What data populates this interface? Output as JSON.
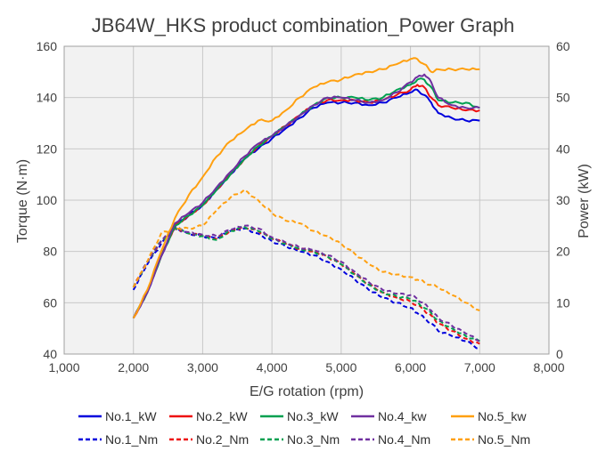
{
  "chart_data": {
    "type": "line",
    "title": "JB64W_HKS product combination_Power Graph",
    "xlabel": "E/G rotation (rpm)",
    "ylabel": "Torque (N·m)",
    "y2label": "Power (kW)",
    "xlim": [
      1000,
      8000
    ],
    "ylim": [
      40,
      160
    ],
    "y2lim": [
      0,
      60
    ],
    "xticks": [
      1000,
      2000,
      3000,
      4000,
      5000,
      6000,
      7000,
      8000
    ],
    "xtick_labels": [
      "1,000",
      "2,000",
      "3,000",
      "4,000",
      "5,000",
      "6,000",
      "7,000",
      "8,000"
    ],
    "yticks": [
      40,
      60,
      80,
      100,
      120,
      140,
      160
    ],
    "ytick_labels": [
      "40",
      "60",
      "80",
      "100",
      "120",
      "140",
      "160"
    ],
    "y2ticks": [
      0,
      10,
      20,
      30,
      40,
      50,
      60
    ],
    "y2tick_labels": [
      "0",
      "10",
      "20",
      "30",
      "40",
      "50",
      "60"
    ],
    "grid": true,
    "legend": "bottom",
    "colors": {
      "No.1": "#0000dd",
      "No.2": "#ee1111",
      "No.3": "#00a050",
      "No.4": "#7030a0",
      "No.5": "#ffa010",
      "plot_background": "#f2f2f2",
      "grid": "#c8c8c8"
    },
    "x": [
      2000,
      2200,
      2400,
      2600,
      2800,
      3000,
      3200,
      3400,
      3600,
      3800,
      4000,
      4200,
      4400,
      4600,
      4800,
      5000,
      5200,
      5400,
      5600,
      5800,
      6000,
      6100,
      6200,
      6300,
      6400,
      6600,
      6800,
      7000
    ],
    "series": [
      {
        "name": "No.1_kW",
        "axis": "right",
        "style": "solid",
        "color": "#0000dd",
        "values": [
          7,
          12,
          19,
          25,
          27,
          29,
          32,
          35,
          38,
          40,
          42,
          44,
          46,
          48,
          49,
          49,
          49,
          48.5,
          49,
          50,
          51,
          51.5,
          50.5,
          49,
          47,
          46,
          45.5,
          45.5
        ]
      },
      {
        "name": "No.2_kW",
        "axis": "right",
        "style": "solid",
        "color": "#ee1111",
        "values": [
          7,
          12,
          19,
          25,
          27,
          29,
          32,
          35,
          38,
          40.5,
          42.5,
          44.5,
          46.5,
          48.5,
          49.5,
          49.5,
          49.5,
          49,
          49.5,
          50.5,
          51.5,
          52.5,
          52,
          50,
          48.5,
          48,
          47.5,
          47.5
        ]
      },
      {
        "name": "No.3_kW",
        "axis": "right",
        "style": "solid",
        "color": "#00a050",
        "values": [
          7,
          12,
          19,
          25,
          27,
          29,
          32,
          35,
          38,
          40.5,
          42.5,
          44.5,
          46.5,
          48.5,
          50,
          50,
          50,
          49.5,
          50,
          51.5,
          52.5,
          53.5,
          53.5,
          52,
          49.5,
          49,
          49,
          48
        ]
      },
      {
        "name": "No.4_kw",
        "axis": "right",
        "style": "solid",
        "color": "#7030a0",
        "values": [
          7,
          12,
          19,
          25.5,
          27.5,
          29.5,
          32.5,
          35.5,
          38.5,
          41,
          42.5,
          44.5,
          46.5,
          48.5,
          50,
          50,
          49.5,
          49,
          49.5,
          51,
          53,
          54,
          54.5,
          53,
          50,
          48.5,
          48,
          48
        ]
      },
      {
        "name": "No.5_kw",
        "axis": "right",
        "style": "solid",
        "color": "#ffa010",
        "values": [
          7,
          12.5,
          20,
          26.5,
          31,
          34.5,
          38.5,
          41.5,
          43.5,
          45.5,
          45.5,
          47.5,
          50,
          52,
          53,
          53.5,
          54.5,
          55,
          55.5,
          56.5,
          57.5,
          57.5,
          56.5,
          55,
          55.5,
          55.5,
          55.5,
          55.5
        ]
      },
      {
        "name": "No.1_Nm",
        "axis": "left",
        "style": "dashed",
        "color": "#0000dd",
        "values": [
          65,
          75,
          83,
          89,
          87,
          86,
          85,
          88,
          89,
          87,
          84,
          82,
          80,
          78.5,
          76,
          73,
          69,
          65,
          62,
          60,
          58,
          56,
          54,
          52,
          49,
          47,
          45,
          42
        ]
      },
      {
        "name": "No.2_Nm",
        "axis": "left",
        "style": "dashed",
        "color": "#ee1111",
        "values": [
          66,
          76,
          84,
          89,
          87,
          86,
          85,
          88,
          89.5,
          88,
          85,
          83,
          81,
          80,
          78,
          75,
          71,
          67,
          64,
          62,
          60.5,
          59,
          57,
          55,
          52,
          49,
          46,
          44
        ]
      },
      {
        "name": "No.3_Nm",
        "axis": "left",
        "style": "dashed",
        "color": "#00a050",
        "values": [
          66,
          76,
          84,
          89,
          87,
          86,
          84.5,
          88,
          89.5,
          88,
          85,
          83,
          81,
          80,
          78,
          75,
          71,
          67,
          64,
          62.5,
          61.5,
          60,
          58,
          56,
          53,
          50,
          47,
          45
        ]
      },
      {
        "name": "No.4_Nm",
        "axis": "left",
        "style": "dashed",
        "color": "#7030a0",
        "values": [
          66,
          76,
          84,
          89.5,
          87.5,
          86.5,
          86,
          88.5,
          90,
          89,
          85.5,
          83.5,
          81.5,
          80.5,
          78.5,
          76,
          72,
          68,
          65,
          63.5,
          63,
          61.5,
          59.5,
          57,
          54,
          51,
          48,
          45
        ]
      },
      {
        "name": "No.5_Nm",
        "axis": "left",
        "style": "dashed",
        "color": "#ffa010",
        "values": [
          66,
          76,
          87,
          89,
          89,
          90,
          96,
          101,
          104,
          100,
          95,
          92,
          91,
          88,
          86,
          83,
          79,
          75,
          72,
          71,
          70,
          69,
          68,
          67,
          66,
          63,
          60,
          57
        ]
      }
    ]
  }
}
